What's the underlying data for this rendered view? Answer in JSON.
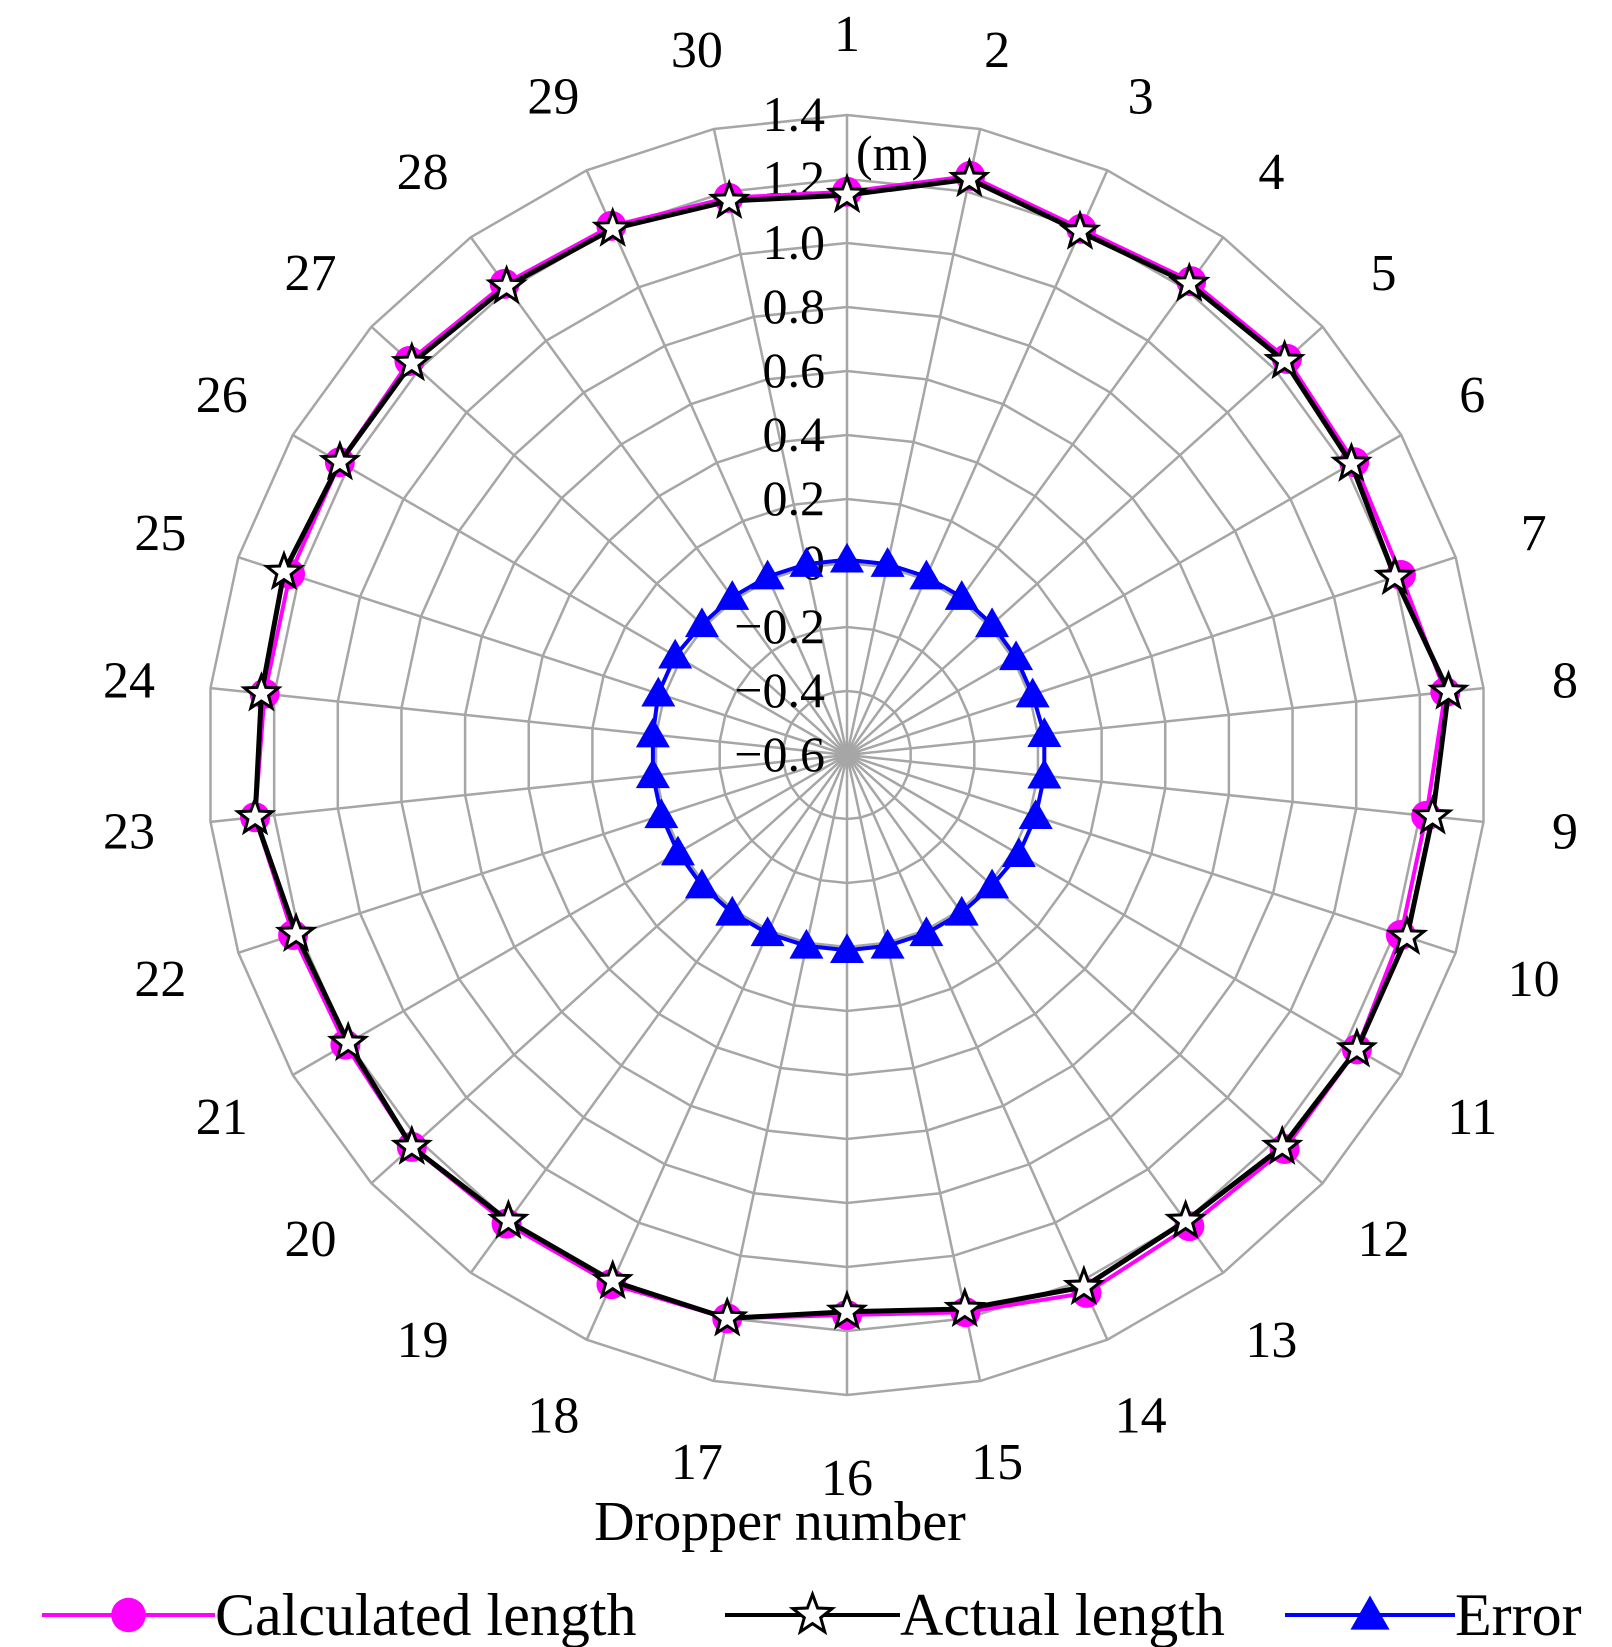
{
  "chart_data": {
    "type": "radar",
    "unit_label": "(m)",
    "xlabel": "Dropper number",
    "categories": [
      "1",
      "2",
      "3",
      "4",
      "5",
      "6",
      "7",
      "8",
      "9",
      "10",
      "11",
      "12",
      "13",
      "14",
      "15",
      "16",
      "17",
      "18",
      "19",
      "20",
      "21",
      "22",
      "23",
      "24",
      "25",
      "26",
      "27",
      "28",
      "29",
      "30"
    ],
    "r_ticks": [
      "−0.6",
      "−0.4",
      "−0.2",
      "0",
      "0.2",
      "0.4",
      "0.6",
      "0.8",
      "1.0",
      "1.2",
      "1.4"
    ],
    "r_range": [
      -0.6,
      1.4
    ],
    "grid": true,
    "legend_position": "bottom",
    "series": [
      {
        "name": "Calculated length",
        "color": "#ff00ff",
        "marker": "circle",
        "values": [
          1.16,
          1.25,
          1.2,
          1.23,
          1.25,
          1.23,
          1.22,
          1.28,
          1.22,
          1.22,
          1.24,
          1.24,
          1.22,
          1.24,
          1.18,
          1.15,
          1.2,
          1.21,
          1.21,
          1.23,
          1.21,
          1.22,
          1.26,
          1.23,
          1.23,
          1.23,
          1.24,
          1.22,
          1.21,
          1.18
        ]
      },
      {
        "name": "Actual length",
        "color": "#000000",
        "marker": "star",
        "values": [
          1.15,
          1.24,
          1.19,
          1.22,
          1.24,
          1.22,
          1.2,
          1.29,
          1.24,
          1.24,
          1.24,
          1.23,
          1.2,
          1.22,
          1.17,
          1.14,
          1.2,
          1.2,
          1.2,
          1.23,
          1.2,
          1.21,
          1.26,
          1.24,
          1.25,
          1.23,
          1.23,
          1.21,
          1.2,
          1.17
        ]
      },
      {
        "name": "Error",
        "color": "#0000ff",
        "marker": "triangle",
        "values": [
          0.01,
          0.01,
          0.01,
          0.01,
          0.01,
          0.01,
          0.01,
          0.02,
          0.02,
          0.02,
          0.02,
          0.01,
          0.01,
          0.01,
          0.01,
          0.01,
          0.01,
          0.01,
          0.01,
          0.01,
          0.01,
          0.01,
          0.01,
          0.01,
          0.02,
          0.02,
          0.01,
          0.01,
          0.01,
          0.01
        ]
      }
    ]
  }
}
